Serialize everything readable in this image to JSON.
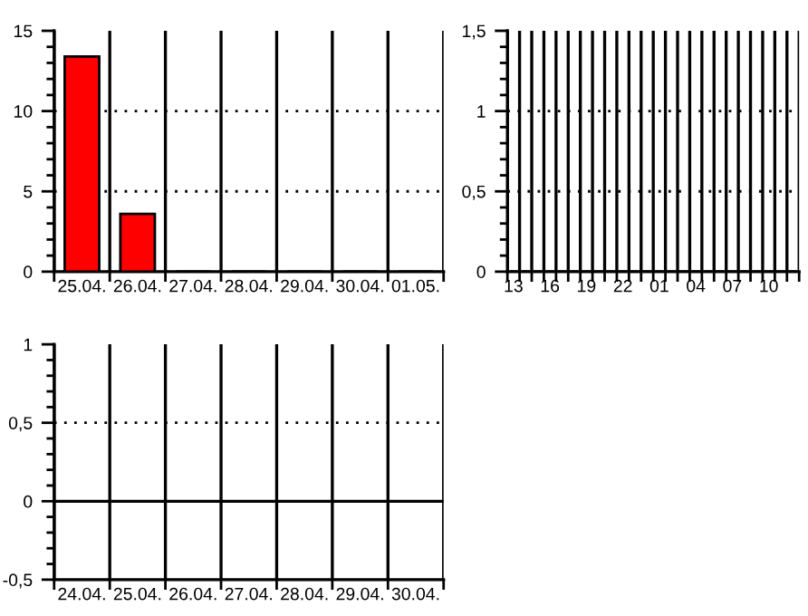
{
  "chart_data": [
    {
      "type": "bar",
      "categories": [
        "25.04.",
        "26.04.",
        "27.04.",
        "28.04.",
        "29.04.",
        "30.04.",
        "01.05."
      ],
      "series": [
        {
          "color": "#ff0000",
          "values": [
            13.4,
            3.6,
            0,
            0,
            0,
            0,
            0
          ]
        }
      ],
      "ylim": [
        0,
        15
      ],
      "yticks": [
        0,
        5,
        10,
        15
      ],
      "grid": true
    },
    {
      "type": "bar",
      "categories": [
        "13",
        null,
        null,
        "16",
        null,
        null,
        "19",
        null,
        null,
        "22",
        null,
        null,
        "01",
        null,
        null,
        "04",
        null,
        null,
        "07",
        null,
        null,
        "10",
        null,
        null
      ],
      "series": [
        {
          "color": "#000000",
          "values": [
            0,
            0,
            0,
            0,
            0,
            0,
            0,
            0,
            0,
            0,
            0,
            0,
            0,
            0,
            0,
            0,
            0,
            0,
            0,
            0,
            0,
            0,
            0,
            0
          ]
        }
      ],
      "ylim": [
        0,
        1.5
      ],
      "yticks": [
        0,
        {
          "value": 0.5,
          "label": "0,5"
        },
        1,
        {
          "value": 1.5,
          "label": "1,5"
        }
      ],
      "grid": true
    },
    {
      "type": "bar",
      "categories": [
        "24.04.",
        "25.04.",
        "26.04.",
        "27.04.",
        "28.04.",
        "29.04.",
        "30.04."
      ],
      "series": [
        {
          "color": "#000000",
          "values": [
            0,
            0,
            0,
            0,
            0,
            0,
            0
          ]
        }
      ],
      "ylim": [
        -0.5,
        1
      ],
      "yticks": [
        {
          "value": -0.5,
          "label": "-0,5"
        },
        0,
        {
          "value": 0.5,
          "label": "0,5"
        },
        1
      ],
      "ref_lines": [
        {
          "axis": "y",
          "value": 0
        },
        {
          "axis": "y",
          "value": 0.5,
          "line_style": "dotted"
        }
      ],
      "grid": "x"
    }
  ]
}
